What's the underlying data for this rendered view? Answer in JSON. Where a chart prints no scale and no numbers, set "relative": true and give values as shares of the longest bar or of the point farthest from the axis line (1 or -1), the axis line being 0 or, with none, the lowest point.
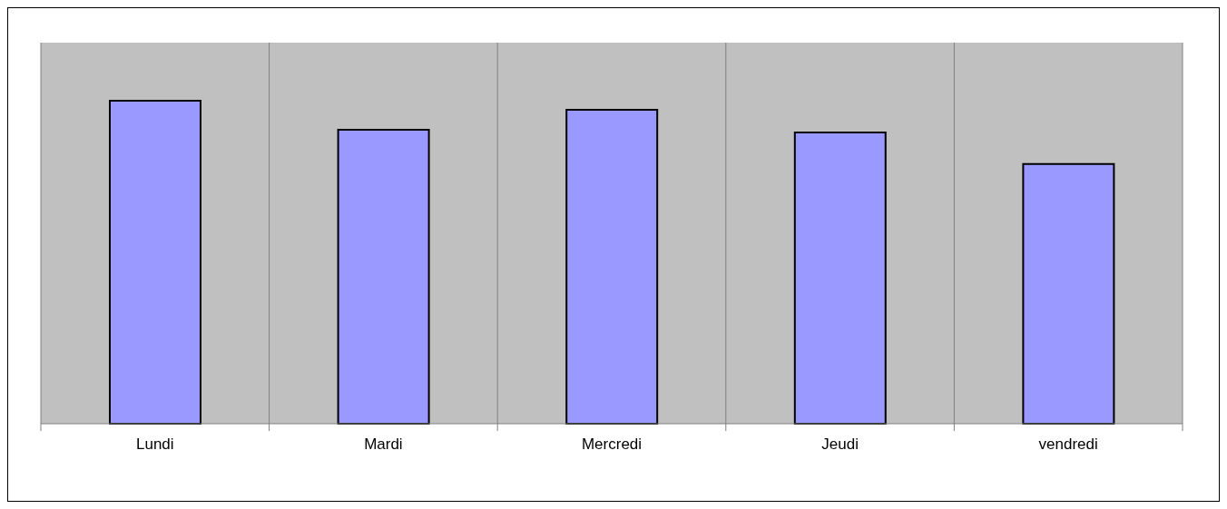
{
  "chart_data": {
    "type": "bar",
    "categories": [
      "Lundi",
      "Mardi",
      "Mercredi",
      "Jeudi",
      "vendredi"
    ],
    "values": [
      1,
      0.91,
      0.972,
      0.902,
      0.804
    ],
    "relative": true,
    "color": "#9999ff",
    "grid": "x"
  }
}
